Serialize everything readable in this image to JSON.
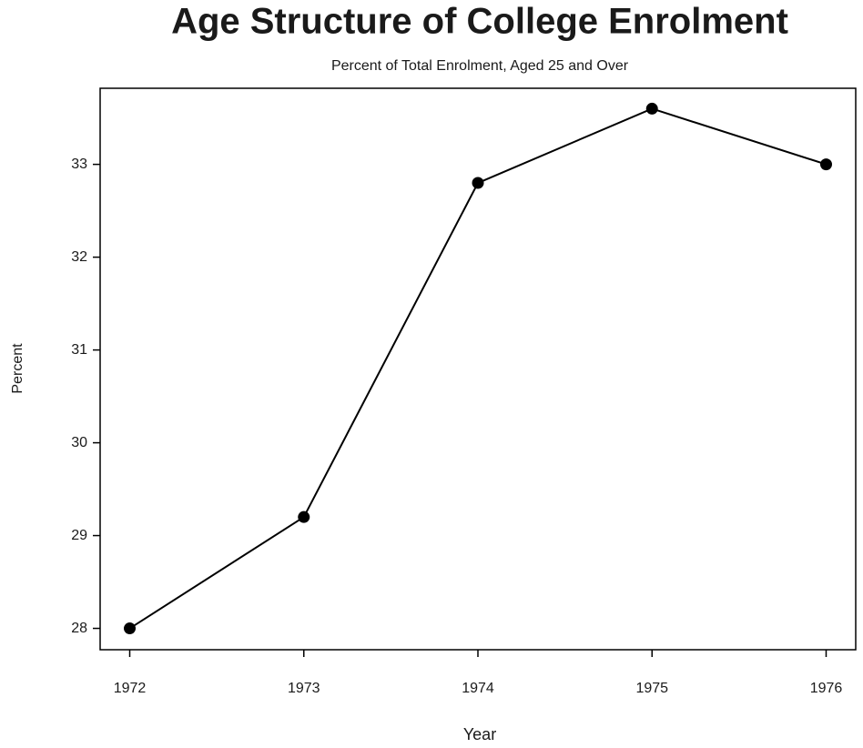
{
  "chart_data": {
    "type": "line",
    "title": "Age Structure of College Enrolment",
    "subtitle": "Percent of Total Enrolment, Aged 25 and Over",
    "x_label": "Year",
    "y_label": "Percent",
    "x": [
      1972,
      1973,
      1974,
      1975,
      1976
    ],
    "series": [
      {
        "name": "Percent",
        "color": "#000000",
        "values": [
          28.0,
          29.2,
          32.8,
          33.6,
          33.0
        ]
      }
    ],
    "xlim": [
      1971.83,
      1976.17
    ],
    "xticks": [
      1972,
      1973,
      1974,
      1975,
      1976
    ],
    "ylim": [
      27.77,
      33.82
    ],
    "yticks": [
      28,
      29,
      30,
      31,
      32,
      33
    ],
    "grid": false
  }
}
